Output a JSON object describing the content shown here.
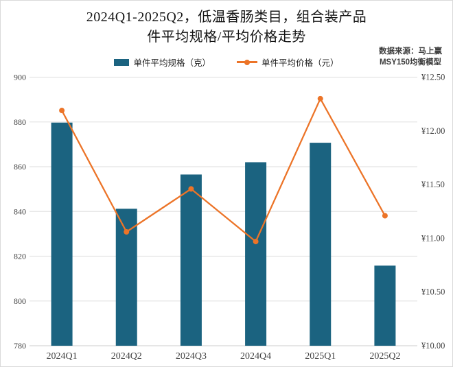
{
  "title": {
    "line1": "2024Q1-2025Q2，低温香肠类目，组合装产品",
    "line2": "件平均规格/平均价格走势"
  },
  "source": {
    "line1": "数据来源：马上赢",
    "line2": "MSY150均衡模型"
  },
  "legend": {
    "spec_label": "单件平均规格（克）",
    "price_label": "单件平均价格（元）"
  },
  "colors": {
    "bar": "#1B6380",
    "line": "#EC7428",
    "gridline": "#E4E4E4",
    "axis_line": "#D6D6D6",
    "tick_text": "#404040",
    "border": "#D9D9D9"
  },
  "chart_data": {
    "type": "bar",
    "subtype": "bar+line dual axis",
    "title": "2024Q1-2025Q2，低温香肠类目，组合装产品 件平均规格/平均价格走势",
    "categories": [
      "2024Q1",
      "2024Q2",
      "2024Q3",
      "2024Q4",
      "2025Q1",
      "2025Q2"
    ],
    "series": [
      {
        "name": "单件平均规格（克）",
        "kind": "bar",
        "axis": "left",
        "values": [
          879.7,
          841.2,
          856.5,
          862.0,
          870.7,
          815.8
        ]
      },
      {
        "name": "单件平均价格（元）",
        "kind": "line",
        "axis": "right",
        "values": [
          12.19,
          11.06,
          11.46,
          10.97,
          12.3,
          11.21
        ]
      }
    ],
    "left_axis": {
      "min": 780,
      "max": 900,
      "step": 20,
      "ticks": [
        "900",
        "880",
        "860",
        "840",
        "820",
        "800",
        "780"
      ]
    },
    "right_axis": {
      "min": 10.0,
      "max": 12.5,
      "step": 0.5,
      "ticks": [
        "¥12.50",
        "¥12.00",
        "¥11.50",
        "¥11.00",
        "¥10.50",
        "¥10.00"
      ]
    },
    "grid": "horizontal",
    "legend_position": "top"
  }
}
